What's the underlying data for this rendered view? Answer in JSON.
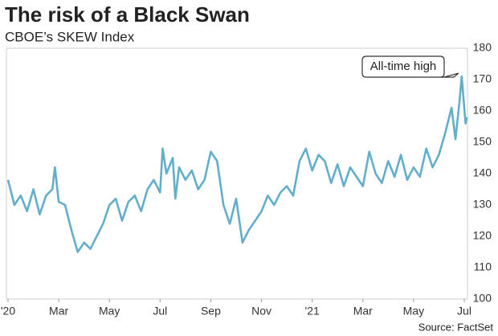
{
  "chart_data": {
    "type": "line",
    "title": "The risk of a Black Swan",
    "subtitle": "CBOE’s SKEW Index",
    "source": "Source: FactSet",
    "annotation": {
      "text": "All-time high",
      "x": 17.9,
      "y": 171
    },
    "grid": false,
    "xlim": [
      0,
      18
    ],
    "xticks": [
      {
        "value": 0,
        "label": "'20"
      },
      {
        "value": 2,
        "label": "Mar"
      },
      {
        "value": 4,
        "label": "May"
      },
      {
        "value": 6,
        "label": "Jul"
      },
      {
        "value": 8,
        "label": "Sep"
      },
      {
        "value": 10,
        "label": "Nov"
      },
      {
        "value": 12,
        "label": "'21"
      },
      {
        "value": 14,
        "label": "Mar"
      },
      {
        "value": 16,
        "label": "May"
      },
      {
        "value": 18,
        "label": "Jul"
      }
    ],
    "ylim": [
      100,
      180
    ],
    "yticks": [
      100,
      110,
      120,
      130,
      140,
      150,
      160,
      170,
      180
    ],
    "x": [
      0,
      0.25,
      0.5,
      0.75,
      1.0,
      1.25,
      1.5,
      1.75,
      1.85,
      2.0,
      2.25,
      2.5,
      2.75,
      3.0,
      3.25,
      3.5,
      3.75,
      4.0,
      4.25,
      4.5,
      4.75,
      5.0,
      5.25,
      5.5,
      5.75,
      6.0,
      6.1,
      6.25,
      6.5,
      6.6,
      6.75,
      7.0,
      7.25,
      7.5,
      7.75,
      8.0,
      8.25,
      8.5,
      8.75,
      9.0,
      9.25,
      9.5,
      9.75,
      10.0,
      10.25,
      10.5,
      10.75,
      11.0,
      11.25,
      11.5,
      11.75,
      12.0,
      12.25,
      12.5,
      12.75,
      13.0,
      13.25,
      13.5,
      13.75,
      14.0,
      14.25,
      14.5,
      14.75,
      15.0,
      15.25,
      15.5,
      15.75,
      16.0,
      16.25,
      16.5,
      16.75,
      17.0,
      17.25,
      17.5,
      17.65,
      17.8,
      17.9,
      18.0,
      18.05,
      18.1
    ],
    "series": [
      {
        "name": "SKEW",
        "color": "#62aecb",
        "values": [
          138,
          130,
          133,
          128,
          135,
          127,
          133,
          135,
          142,
          131,
          130,
          122,
          115,
          118,
          116,
          120,
          124,
          130,
          132,
          125,
          131,
          133,
          128,
          135,
          138,
          134,
          148,
          140,
          145,
          132,
          142,
          138,
          141,
          135,
          138,
          147,
          144,
          130,
          124,
          132,
          118,
          122,
          125,
          128,
          133,
          130,
          134,
          136,
          133,
          144,
          148,
          141,
          146,
          144,
          137,
          143,
          136,
          142,
          139,
          136,
          147,
          140,
          137,
          144,
          139,
          146,
          138,
          142,
          139,
          148,
          142,
          146,
          153,
          161,
          151,
          162,
          171,
          161,
          156,
          158
        ]
      }
    ]
  }
}
